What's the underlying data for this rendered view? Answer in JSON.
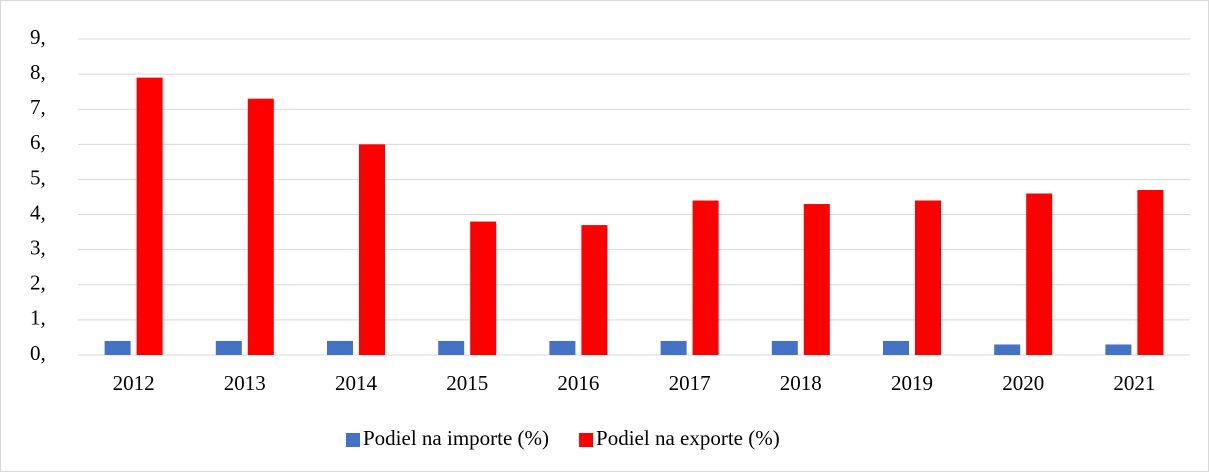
{
  "chart_data": {
    "type": "bar",
    "categories": [
      "2012",
      "2013",
      "2014",
      "2015",
      "2016",
      "2017",
      "2018",
      "2019",
      "2020",
      "2021"
    ],
    "series": [
      {
        "name": "Podiel na importe (%)",
        "color": "#4472c4",
        "values": [
          0.4,
          0.4,
          0.4,
          0.4,
          0.4,
          0.4,
          0.4,
          0.4,
          0.3,
          0.3
        ]
      },
      {
        "name": "Podiel na exporte (%)",
        "color": "#ff0000",
        "values": [
          7.9,
          7.3,
          6.0,
          3.8,
          3.7,
          4.4,
          4.3,
          4.4,
          4.6,
          4.7
        ]
      }
    ],
    "ylim": [
      0,
      9
    ],
    "yticks": [
      {
        "value": 0,
        "label": "0,"
      },
      {
        "value": 1,
        "label": "1,"
      },
      {
        "value": 2,
        "label": "2,"
      },
      {
        "value": 3,
        "label": "3,"
      },
      {
        "value": 4,
        "label": "4,"
      },
      {
        "value": 5,
        "label": "5,"
      },
      {
        "value": 6,
        "label": "6,"
      },
      {
        "value": 7,
        "label": "7,"
      },
      {
        "value": 8,
        "label": "8,"
      },
      {
        "value": 9,
        "label": "9,"
      }
    ],
    "grid": true,
    "legend": "bottom"
  }
}
